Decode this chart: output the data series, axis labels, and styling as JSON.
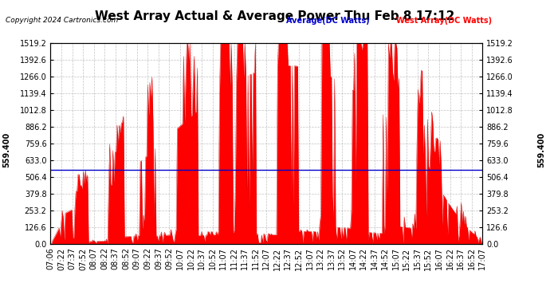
{
  "title": "West Array Actual & Average Power Thu Feb 8 17:12",
  "copyright": "Copyright 2024 Cartronics.com",
  "legend_avg": "Average(DC Watts)",
  "legend_west": "West Array(DC Watts)",
  "avg_line_value": 559.4,
  "avg_line_label": "559.400",
  "ymin": 0.0,
  "ymax": 1519.2,
  "yticks": [
    0.0,
    126.6,
    253.2,
    379.8,
    506.4,
    633.0,
    759.6,
    886.2,
    1012.8,
    1139.4,
    1266.0,
    1392.6,
    1519.2
  ],
  "xtick_labels": [
    "07:06",
    "07:22",
    "07:37",
    "07:52",
    "08:07",
    "08:22",
    "08:37",
    "08:52",
    "09:07",
    "09:22",
    "09:37",
    "09:52",
    "10:07",
    "10:22",
    "10:37",
    "10:52",
    "11:07",
    "11:22",
    "11:37",
    "11:52",
    "12:07",
    "12:22",
    "12:37",
    "12:52",
    "13:07",
    "13:22",
    "13:37",
    "13:52",
    "14:07",
    "14:22",
    "14:37",
    "14:52",
    "15:07",
    "15:22",
    "15:37",
    "15:52",
    "16:07",
    "16:22",
    "16:37",
    "16:52",
    "17:07"
  ],
  "title_color": "#000000",
  "avg_line_color": "#0000cc",
  "west_fill_color": "#ff0000",
  "west_edge_color": "#cc0000",
  "background_color": "#ffffff",
  "grid_color": "#999999",
  "title_fontsize": 11,
  "tick_fontsize": 7,
  "copyright_fontsize": 6.5
}
